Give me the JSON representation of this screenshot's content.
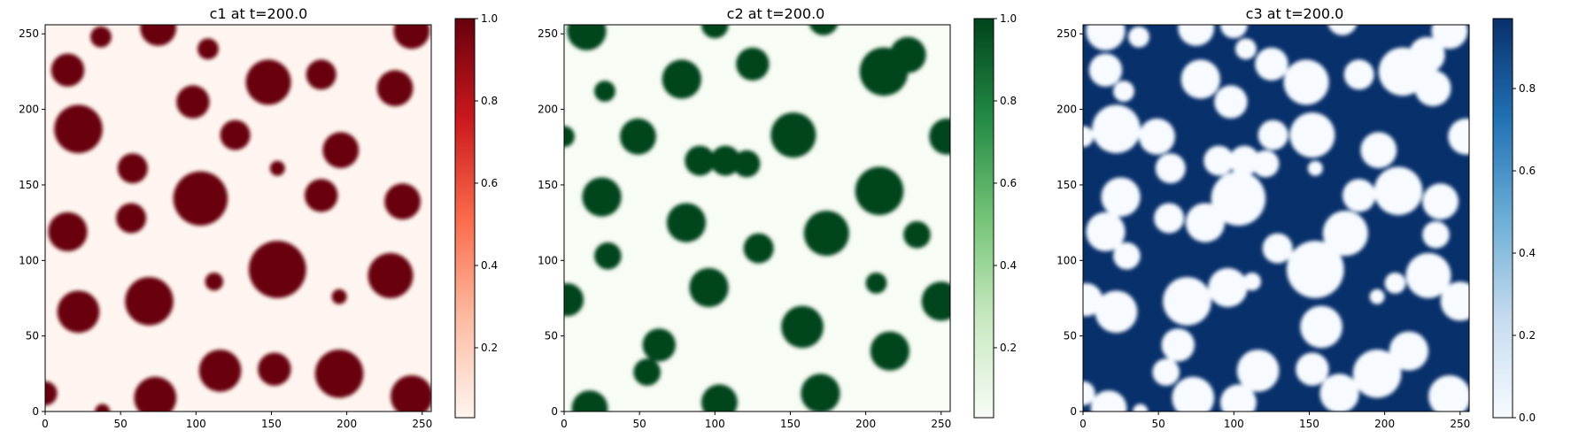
{
  "chart_data": [
    {
      "type": "heatmap",
      "title": "c1 at t=200.0",
      "xlim": [
        0,
        256
      ],
      "ylim": [
        0,
        256
      ],
      "xticks": [
        0,
        50,
        100,
        150,
        200,
        250
      ],
      "yticks": [
        0,
        50,
        100,
        150,
        200,
        250
      ],
      "colormap": "Reds",
      "colormap_colors": [
        "#fff5f0",
        "#fcbba1",
        "#fb6a4a",
        "#cb181d",
        "#67000d"
      ],
      "colorbar_range": [
        0.03,
        1.0
      ],
      "colorbar_ticks": [
        "0.2",
        "0.4",
        "0.6",
        "0.8",
        "1.0"
      ],
      "blob_value": "high",
      "blobs": [
        {
          "x": 37,
          "y": 248,
          "r": 7
        },
        {
          "x": 75,
          "y": 254,
          "r": 12
        },
        {
          "x": 108,
          "y": 240,
          "r": 7
        },
        {
          "x": 243,
          "y": 252,
          "r": 12
        },
        {
          "x": 15,
          "y": 226,
          "r": 11
        },
        {
          "x": 148,
          "y": 218,
          "r": 15
        },
        {
          "x": 183,
          "y": 223,
          "r": 10
        },
        {
          "x": 232,
          "y": 214,
          "r": 12
        },
        {
          "x": 98,
          "y": 205,
          "r": 11
        },
        {
          "x": 22,
          "y": 187,
          "r": 16
        },
        {
          "x": 126,
          "y": 183,
          "r": 10
        },
        {
          "x": 196,
          "y": 173,
          "r": 12
        },
        {
          "x": 58,
          "y": 161,
          "r": 10
        },
        {
          "x": 154,
          "y": 161,
          "r": 5
        },
        {
          "x": 103,
          "y": 141,
          "r": 18
        },
        {
          "x": 183,
          "y": 143,
          "r": 11
        },
        {
          "x": 237,
          "y": 139,
          "r": 12
        },
        {
          "x": 57,
          "y": 128,
          "r": 10
        },
        {
          "x": 15,
          "y": 119,
          "r": 13
        },
        {
          "x": 154,
          "y": 94,
          "r": 19
        },
        {
          "x": 229,
          "y": 90,
          "r": 15
        },
        {
          "x": 112,
          "y": 86,
          "r": 6
        },
        {
          "x": 195,
          "y": 76,
          "r": 5
        },
        {
          "x": 69,
          "y": 73,
          "r": 16
        },
        {
          "x": 22,
          "y": 66,
          "r": 14
        },
        {
          "x": 116,
          "y": 27,
          "r": 14
        },
        {
          "x": 152,
          "y": 28,
          "r": 11
        },
        {
          "x": 195,
          "y": 25,
          "r": 16
        },
        {
          "x": 73,
          "y": 9,
          "r": 14
        },
        {
          "x": 243,
          "y": 10,
          "r": 14
        },
        {
          "x": 0,
          "y": 12,
          "r": 8
        },
        {
          "x": 38,
          "y": 0,
          "r": 5
        }
      ]
    },
    {
      "type": "heatmap",
      "title": "c2 at t=200.0",
      "xlim": [
        0,
        256
      ],
      "ylim": [
        0,
        256
      ],
      "xticks": [
        0,
        50,
        100,
        150,
        200,
        250
      ],
      "yticks": [
        0,
        50,
        100,
        150,
        200,
        250
      ],
      "colormap": "Greens",
      "colormap_colors": [
        "#f7fcf5",
        "#c7e9c0",
        "#74c476",
        "#238b45",
        "#00441b"
      ],
      "colorbar_range": [
        0.03,
        1.0
      ],
      "colorbar_ticks": [
        "0.2",
        "0.4",
        "0.6",
        "0.8",
        "1.0"
      ],
      "blob_value": "high",
      "blobs": [
        {
          "x": 15,
          "y": 252,
          "r": 13
        },
        {
          "x": 100,
          "y": 256,
          "r": 9
        },
        {
          "x": 172,
          "y": 259,
          "r": 10
        },
        {
          "x": 212,
          "y": 225,
          "r": 16
        },
        {
          "x": 228,
          "y": 236,
          "r": 12
        },
        {
          "x": 78,
          "y": 220,
          "r": 13
        },
        {
          "x": 125,
          "y": 230,
          "r": 11
        },
        {
          "x": 27,
          "y": 212,
          "r": 7
        },
        {
          "x": 49,
          "y": 182,
          "r": 12
        },
        {
          "x": 152,
          "y": 183,
          "r": 15
        },
        {
          "x": 254,
          "y": 182,
          "r": 12
        },
        {
          "x": 0,
          "y": 182,
          "r": 7
        },
        {
          "x": 90,
          "y": 166,
          "r": 10
        },
        {
          "x": 107,
          "y": 166,
          "r": 10
        },
        {
          "x": 121,
          "y": 164,
          "r": 9
        },
        {
          "x": 209,
          "y": 146,
          "r": 16
        },
        {
          "x": 25,
          "y": 142,
          "r": 13
        },
        {
          "x": 81,
          "y": 125,
          "r": 13
        },
        {
          "x": 174,
          "y": 118,
          "r": 15
        },
        {
          "x": 234,
          "y": 117,
          "r": 9
        },
        {
          "x": 129,
          "y": 108,
          "r": 10
        },
        {
          "x": 29,
          "y": 103,
          "r": 9
        },
        {
          "x": 207,
          "y": 85,
          "r": 7
        },
        {
          "x": 96,
          "y": 82,
          "r": 13
        },
        {
          "x": 250,
          "y": 73,
          "r": 13
        },
        {
          "x": 2,
          "y": 74,
          "r": 11
        },
        {
          "x": 63,
          "y": 44,
          "r": 11
        },
        {
          "x": 55,
          "y": 26,
          "r": 9
        },
        {
          "x": 158,
          "y": 56,
          "r": 14
        },
        {
          "x": 216,
          "y": 40,
          "r": 13
        },
        {
          "x": 17,
          "y": 2,
          "r": 12
        },
        {
          "x": 103,
          "y": 6,
          "r": 12
        },
        {
          "x": 170,
          "y": 12,
          "r": 13
        }
      ]
    },
    {
      "type": "heatmap",
      "title": "c3 at t=200.0",
      "xlim": [
        0,
        256
      ],
      "ylim": [
        0,
        256
      ],
      "xticks": [
        0,
        50,
        100,
        150,
        200,
        250
      ],
      "yticks": [
        0,
        50,
        100,
        150,
        200,
        250
      ],
      "colormap": "Blues",
      "colormap_colors": [
        "#f7fbff",
        "#c6dbef",
        "#6baed6",
        "#2171b5",
        "#08306b"
      ],
      "colorbar_range": [
        0.0,
        0.97
      ],
      "colorbar_ticks": [
        "0.0",
        "0.2",
        "0.4",
        "0.6",
        "0.8"
      ],
      "blob_value": "low",
      "blobs": [
        {
          "x": 37,
          "y": 248,
          "r": 7
        },
        {
          "x": 75,
          "y": 254,
          "r": 12
        },
        {
          "x": 108,
          "y": 240,
          "r": 7
        },
        {
          "x": 243,
          "y": 252,
          "r": 12
        },
        {
          "x": 15,
          "y": 226,
          "r": 11
        },
        {
          "x": 148,
          "y": 218,
          "r": 15
        },
        {
          "x": 183,
          "y": 223,
          "r": 10
        },
        {
          "x": 232,
          "y": 214,
          "r": 12
        },
        {
          "x": 98,
          "y": 205,
          "r": 11
        },
        {
          "x": 22,
          "y": 187,
          "r": 16
        },
        {
          "x": 126,
          "y": 183,
          "r": 10
        },
        {
          "x": 196,
          "y": 173,
          "r": 12
        },
        {
          "x": 58,
          "y": 161,
          "r": 10
        },
        {
          "x": 154,
          "y": 161,
          "r": 5
        },
        {
          "x": 103,
          "y": 141,
          "r": 18
        },
        {
          "x": 183,
          "y": 143,
          "r": 11
        },
        {
          "x": 237,
          "y": 139,
          "r": 12
        },
        {
          "x": 57,
          "y": 128,
          "r": 10
        },
        {
          "x": 15,
          "y": 119,
          "r": 13
        },
        {
          "x": 154,
          "y": 94,
          "r": 19
        },
        {
          "x": 229,
          "y": 90,
          "r": 15
        },
        {
          "x": 112,
          "y": 86,
          "r": 6
        },
        {
          "x": 195,
          "y": 76,
          "r": 5
        },
        {
          "x": 69,
          "y": 73,
          "r": 16
        },
        {
          "x": 22,
          "y": 66,
          "r": 14
        },
        {
          "x": 116,
          "y": 27,
          "r": 14
        },
        {
          "x": 152,
          "y": 28,
          "r": 11
        },
        {
          "x": 195,
          "y": 25,
          "r": 16
        },
        {
          "x": 73,
          "y": 9,
          "r": 14
        },
        {
          "x": 243,
          "y": 10,
          "r": 14
        },
        {
          "x": 0,
          "y": 12,
          "r": 8
        },
        {
          "x": 38,
          "y": 0,
          "r": 5
        },
        {
          "x": 15,
          "y": 252,
          "r": 13
        },
        {
          "x": 100,
          "y": 256,
          "r": 9
        },
        {
          "x": 172,
          "y": 259,
          "r": 10
        },
        {
          "x": 212,
          "y": 225,
          "r": 16
        },
        {
          "x": 228,
          "y": 236,
          "r": 12
        },
        {
          "x": 78,
          "y": 220,
          "r": 13
        },
        {
          "x": 125,
          "y": 230,
          "r": 11
        },
        {
          "x": 27,
          "y": 212,
          "r": 7
        },
        {
          "x": 49,
          "y": 182,
          "r": 12
        },
        {
          "x": 152,
          "y": 183,
          "r": 15
        },
        {
          "x": 254,
          "y": 182,
          "r": 12
        },
        {
          "x": 0,
          "y": 182,
          "r": 7
        },
        {
          "x": 90,
          "y": 166,
          "r": 10
        },
        {
          "x": 107,
          "y": 166,
          "r": 10
        },
        {
          "x": 121,
          "y": 164,
          "r": 9
        },
        {
          "x": 209,
          "y": 146,
          "r": 16
        },
        {
          "x": 25,
          "y": 142,
          "r": 13
        },
        {
          "x": 81,
          "y": 125,
          "r": 13
        },
        {
          "x": 174,
          "y": 118,
          "r": 15
        },
        {
          "x": 234,
          "y": 117,
          "r": 9
        },
        {
          "x": 129,
          "y": 108,
          "r": 10
        },
        {
          "x": 29,
          "y": 103,
          "r": 9
        },
        {
          "x": 207,
          "y": 85,
          "r": 7
        },
        {
          "x": 96,
          "y": 82,
          "r": 13
        },
        {
          "x": 250,
          "y": 73,
          "r": 13
        },
        {
          "x": 2,
          "y": 74,
          "r": 11
        },
        {
          "x": 63,
          "y": 44,
          "r": 11
        },
        {
          "x": 55,
          "y": 26,
          "r": 9
        },
        {
          "x": 158,
          "y": 56,
          "r": 14
        },
        {
          "x": 216,
          "y": 40,
          "r": 13
        },
        {
          "x": 17,
          "y": 2,
          "r": 12
        },
        {
          "x": 103,
          "y": 6,
          "r": 12
        },
        {
          "x": 170,
          "y": 12,
          "r": 13
        }
      ]
    }
  ]
}
